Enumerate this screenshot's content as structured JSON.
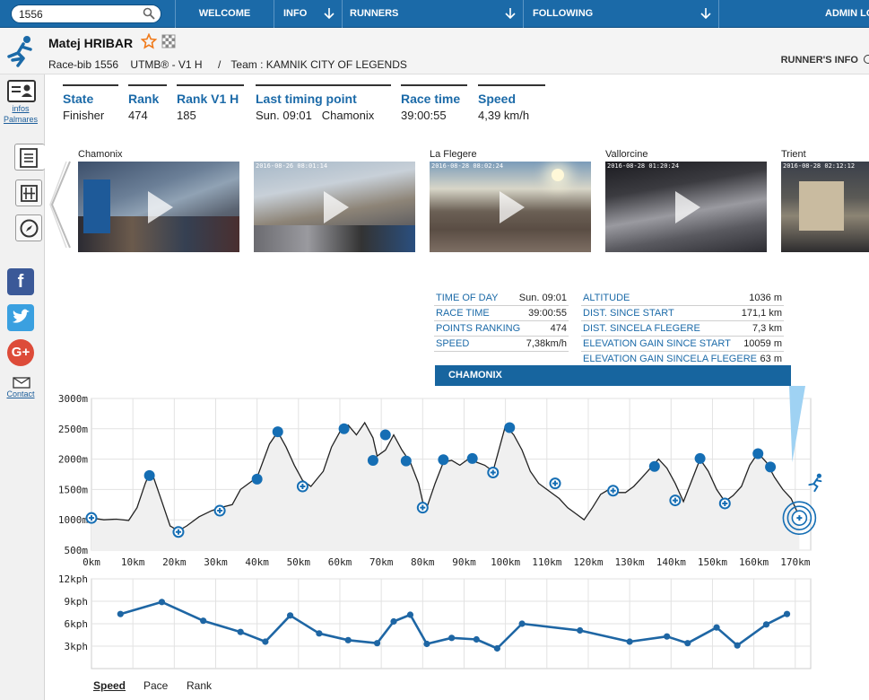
{
  "search": {
    "value": "1556",
    "placeholder": ""
  },
  "nav": {
    "items": [
      {
        "label": "WELCOME",
        "dropdown": false
      },
      {
        "label": "INFO",
        "dropdown": true
      },
      {
        "label": "RUNNERS",
        "dropdown": true
      },
      {
        "label": "FOLLOWING",
        "dropdown": true
      },
      {
        "label": "ADMIN LO",
        "dropdown": false
      }
    ]
  },
  "runner": {
    "name": "Matej HRIBAR",
    "bib": "Race-bib 1556",
    "category": "UTMB® - V1 H",
    "separator": "/",
    "team": "Team : KAMNIK CITY OF LEGENDS",
    "info_link": "RUNNER'S INFO"
  },
  "sidebar": {
    "infos_label": "infos",
    "palmares_label": "Palmares",
    "contact_label": "Contact",
    "social": {
      "facebook": "f",
      "google": "G+"
    }
  },
  "stats": [
    {
      "title": "State",
      "value": "Finisher"
    },
    {
      "title": "Rank",
      "value": "474"
    },
    {
      "title": "Rank V1 H",
      "value": "185"
    },
    {
      "title": "Last timing point",
      "value": "Sun. 09:01   Chamonix"
    },
    {
      "title": "Race time",
      "value": "39:00:55"
    },
    {
      "title": "Speed",
      "value": "4,39 km/h"
    }
  ],
  "photos": [
    {
      "label": "Chamonix",
      "stamp": ""
    },
    {
      "label": "",
      "stamp": "2016-08-26 08:01:14"
    },
    {
      "label": "La Flegere",
      "stamp": "2016-08-28 08:02:24"
    },
    {
      "label": "Vallorcine",
      "stamp": "2016-08-28 01:20:24"
    },
    {
      "label": "Trient",
      "stamp": "2016-08-28 02:12:12"
    }
  ],
  "checkpoint_info": {
    "left": [
      {
        "k": "TIME OF DAY",
        "v": "Sun. 09:01"
      },
      {
        "k": "RACE TIME",
        "v": "39:00:55"
      },
      {
        "k": "POINTS RANKING",
        "v": "474"
      },
      {
        "k": "SPEED",
        "v": "7,38km/h"
      }
    ],
    "right": [
      {
        "k": "ALTITUDE",
        "v": "1036 m"
      },
      {
        "k": "DIST. SINCE START",
        "v": "171,1 km"
      },
      {
        "k": "DIST. SINCELA FLEGERE",
        "v": "7,3 km"
      },
      {
        "k": "ELEVATION GAIN SINCE START",
        "v": "10059 m"
      },
      {
        "k": "ELEVATION GAIN SINCELA FLEGERE",
        "v": "63 m"
      }
    ],
    "banner": "CHAMONIX"
  },
  "chart_data": [
    {
      "type": "area",
      "title": "",
      "xlabel": "",
      "ylabel": "",
      "x_ticks": [
        "0km",
        "10km",
        "20km",
        "30km",
        "40km",
        "50km",
        "60km",
        "70km",
        "80km",
        "90km",
        "100km",
        "110km",
        "120km",
        "130km",
        "140km",
        "150km",
        "160km",
        "170km"
      ],
      "y_ticks": [
        "500m",
        "1000m",
        "1500m",
        "2000m",
        "2500m",
        "3000m"
      ],
      "xlim": [
        0,
        172
      ],
      "ylim": [
        500,
        3000
      ],
      "grid": true,
      "profile": [
        [
          0,
          1030
        ],
        [
          3,
          1000
        ],
        [
          6,
          1010
        ],
        [
          9,
          990
        ],
        [
          11,
          1200
        ],
        [
          13,
          1600
        ],
        [
          14,
          1760
        ],
        [
          15,
          1700
        ],
        [
          17,
          1300
        ],
        [
          19,
          900
        ],
        [
          21,
          820
        ],
        [
          23,
          900
        ],
        [
          26,
          1050
        ],
        [
          29,
          1150
        ],
        [
          31,
          1200
        ],
        [
          34,
          1250
        ],
        [
          36,
          1500
        ],
        [
          38,
          1600
        ],
        [
          40,
          1700
        ],
        [
          43,
          2250
        ],
        [
          45,
          2450
        ],
        [
          47,
          2200
        ],
        [
          49,
          1900
        ],
        [
          51,
          1650
        ],
        [
          53,
          1550
        ],
        [
          56,
          1800
        ],
        [
          58,
          2200
        ],
        [
          60,
          2450
        ],
        [
          62,
          2560
        ],
        [
          64,
          2400
        ],
        [
          66,
          2600
        ],
        [
          68,
          2350
        ],
        [
          69,
          2050
        ],
        [
          71,
          2150
        ],
        [
          73,
          2400
        ],
        [
          75,
          2150
        ],
        [
          77,
          1950
        ],
        [
          79,
          1600
        ],
        [
          80,
          1300
        ],
        [
          81,
          1200
        ],
        [
          83,
          1600
        ],
        [
          85,
          1950
        ],
        [
          87,
          1980
        ],
        [
          89,
          1900
        ],
        [
          91,
          2000
        ],
        [
          93,
          1950
        ],
        [
          95,
          1900
        ],
        [
          97,
          1800
        ],
        [
          99,
          2300
        ],
        [
          100,
          2550
        ],
        [
          102,
          2400
        ],
        [
          104,
          2150
        ],
        [
          106,
          1800
        ],
        [
          108,
          1600
        ],
        [
          110,
          1500
        ],
        [
          113,
          1350
        ],
        [
          115,
          1200
        ],
        [
          117,
          1100
        ],
        [
          119,
          1000
        ],
        [
          121,
          1200
        ],
        [
          123,
          1420
        ],
        [
          125,
          1500
        ],
        [
          127,
          1450
        ],
        [
          129,
          1450
        ],
        [
          131,
          1550
        ],
        [
          133,
          1700
        ],
        [
          135,
          1850
        ],
        [
          137,
          2000
        ],
        [
          139,
          1850
        ],
        [
          141,
          1600
        ],
        [
          143,
          1300
        ],
        [
          145,
          1650
        ],
        [
          147,
          2000
        ],
        [
          149,
          1800
        ],
        [
          151,
          1500
        ],
        [
          153,
          1300
        ],
        [
          155,
          1400
        ],
        [
          157,
          1550
        ],
        [
          159,
          1900
        ],
        [
          161,
          2100
        ],
        [
          163,
          1950
        ],
        [
          165,
          1700
        ],
        [
          167,
          1500
        ],
        [
          169,
          1350
        ],
        [
          171,
          1050
        ]
      ],
      "checkpoints": [
        {
          "km": 0,
          "alt": 1030,
          "kind": "plus"
        },
        {
          "km": 14,
          "alt": 1730,
          "kind": "dot"
        },
        {
          "km": 21,
          "alt": 800,
          "kind": "plus"
        },
        {
          "km": 31,
          "alt": 1150,
          "kind": "plus"
        },
        {
          "km": 40,
          "alt": 1670,
          "kind": "dot"
        },
        {
          "km": 45,
          "alt": 2450,
          "kind": "dot"
        },
        {
          "km": 51,
          "alt": 1550,
          "kind": "plus"
        },
        {
          "km": 61,
          "alt": 2500,
          "kind": "dot"
        },
        {
          "km": 68,
          "alt": 1980,
          "kind": "dot"
        },
        {
          "km": 71,
          "alt": 2400,
          "kind": "dot"
        },
        {
          "km": 76,
          "alt": 1970,
          "kind": "dot"
        },
        {
          "km": 80,
          "alt": 1200,
          "kind": "plus"
        },
        {
          "km": 85,
          "alt": 1990,
          "kind": "dot"
        },
        {
          "km": 92,
          "alt": 2010,
          "kind": "dot"
        },
        {
          "km": 97,
          "alt": 1780,
          "kind": "plus"
        },
        {
          "km": 101,
          "alt": 2520,
          "kind": "dot"
        },
        {
          "km": 112,
          "alt": 1600,
          "kind": "plus"
        },
        {
          "km": 126,
          "alt": 1480,
          "kind": "plus"
        },
        {
          "km": 136,
          "alt": 1880,
          "kind": "dot"
        },
        {
          "km": 141,
          "alt": 1320,
          "kind": "plus"
        },
        {
          "km": 147,
          "alt": 2010,
          "kind": "dot"
        },
        {
          "km": 153,
          "alt": 1270,
          "kind": "plus"
        },
        {
          "km": 161,
          "alt": 2090,
          "kind": "dot"
        },
        {
          "km": 164,
          "alt": 1870,
          "kind": "dot"
        },
        {
          "km": 171,
          "alt": 1030,
          "kind": "current"
        }
      ]
    },
    {
      "type": "line",
      "title": "",
      "xlabel": "",
      "ylabel": "",
      "y_ticks": [
        "3kph",
        "6kph",
        "9kph",
        "12kph"
      ],
      "ylim": [
        0,
        12
      ],
      "xlim": [
        0,
        172
      ],
      "grid": true,
      "series": [
        {
          "values": [
            [
              7,
              7.3
            ],
            [
              17,
              8.9
            ],
            [
              27,
              6.4
            ],
            [
              36,
              4.9
            ],
            [
              42,
              3.6
            ],
            [
              48,
              7.1
            ],
            [
              55,
              4.7
            ],
            [
              62,
              3.8
            ],
            [
              69,
              3.4
            ],
            [
              73,
              6.3
            ],
            [
              77,
              7.2
            ],
            [
              81,
              3.3
            ],
            [
              87,
              4.1
            ],
            [
              93,
              3.9
            ],
            [
              98,
              2.7
            ],
            [
              104,
              6.0
            ],
            [
              118,
              5.1
            ],
            [
              130,
              3.6
            ],
            [
              139,
              4.3
            ],
            [
              144,
              3.4
            ],
            [
              151,
              5.5
            ],
            [
              156,
              3.1
            ],
            [
              163,
              5.9
            ],
            [
              168,
              7.3
            ]
          ]
        }
      ]
    }
  ],
  "chart_tabs": [
    "Speed",
    "Pace",
    "Rank"
  ],
  "colors": {
    "accent": "#1b6aa8",
    "dot": "#156eb4",
    "fill": "#f0f0f0"
  }
}
